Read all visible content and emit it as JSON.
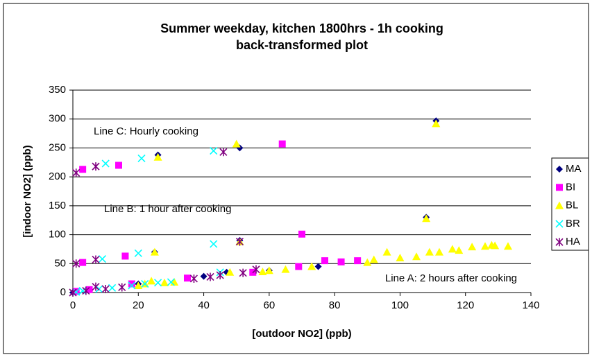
{
  "chart_data": {
    "type": "scatter",
    "title": "Summer weekday, kitchen 1800hrs -  1h cooking",
    "subtitle": "back-transformed plot",
    "x_label": "[outdoor NO2] (ppb)",
    "y_label": "[indoor NO2] (ppb)",
    "annotations": [
      "Line C: Hourly cooking",
      "Line B: 1 hour after cooking",
      "Line A: 2 hours after cooking"
    ],
    "xlim": [
      0,
      140
    ],
    "xticks": [
      0,
      20,
      40,
      60,
      80,
      100,
      120,
      140
    ],
    "ylim": [
      0,
      350
    ],
    "yticks": [
      0,
      50,
      100,
      150,
      200,
      250,
      300,
      350
    ],
    "grid": true,
    "legend": "right",
    "series": [
      {
        "name": "MA",
        "color": "#000080",
        "marker": "diamond",
        "x": [
          111,
          26,
          51,
          108,
          25,
          51,
          47,
          0,
          20,
          40,
          60,
          75
        ],
        "values": [
          297,
          238,
          250,
          130,
          70,
          90,
          35,
          0,
          15,
          28,
          38,
          45
        ]
      },
      {
        "name": "BI",
        "color": "#ff00ff",
        "marker": "square",
        "x": [
          3,
          14,
          64,
          3,
          16,
          70,
          69,
          77,
          82,
          87,
          5,
          18,
          35,
          55,
          1
        ],
        "values": [
          213,
          220,
          257,
          52,
          63,
          101,
          45,
          55,
          53,
          55,
          5,
          15,
          25,
          35,
          2
        ]
      },
      {
        "name": "BL",
        "color": "#ffff00",
        "marker": "triangle",
        "x": [
          111,
          26,
          50,
          108,
          25,
          51,
          96,
          105,
          109,
          112,
          116,
          118,
          122,
          126,
          128,
          129,
          133,
          100,
          92,
          90,
          73,
          65,
          60,
          58,
          48,
          31,
          28,
          24,
          22,
          20
        ],
        "values": [
          292,
          234,
          257,
          128,
          70,
          88,
          70,
          62,
          70,
          70,
          75,
          73,
          79,
          80,
          82,
          81,
          80,
          60,
          57,
          52,
          45,
          40,
          38,
          36,
          35,
          18,
          17,
          20,
          15,
          12
        ]
      },
      {
        "name": "BR",
        "color": "#00ffff",
        "marker": "x",
        "x": [
          10,
          21,
          43,
          9,
          20,
          43,
          45,
          3,
          8,
          12,
          18,
          22,
          26,
          30,
          1
        ],
        "values": [
          223,
          232,
          245,
          58,
          68,
          84,
          35,
          3,
          6,
          8,
          12,
          15,
          17,
          18,
          1
        ]
      },
      {
        "name": "HA",
        "color": "#800080",
        "marker": "star",
        "x": [
          1,
          7,
          46,
          1,
          7,
          51,
          0,
          4,
          7,
          10,
          15,
          37,
          42,
          45,
          52,
          56
        ],
        "values": [
          207,
          218,
          243,
          50,
          57,
          88,
          0,
          3,
          10,
          6,
          9,
          24,
          27,
          30,
          34,
          40
        ]
      }
    ]
  }
}
